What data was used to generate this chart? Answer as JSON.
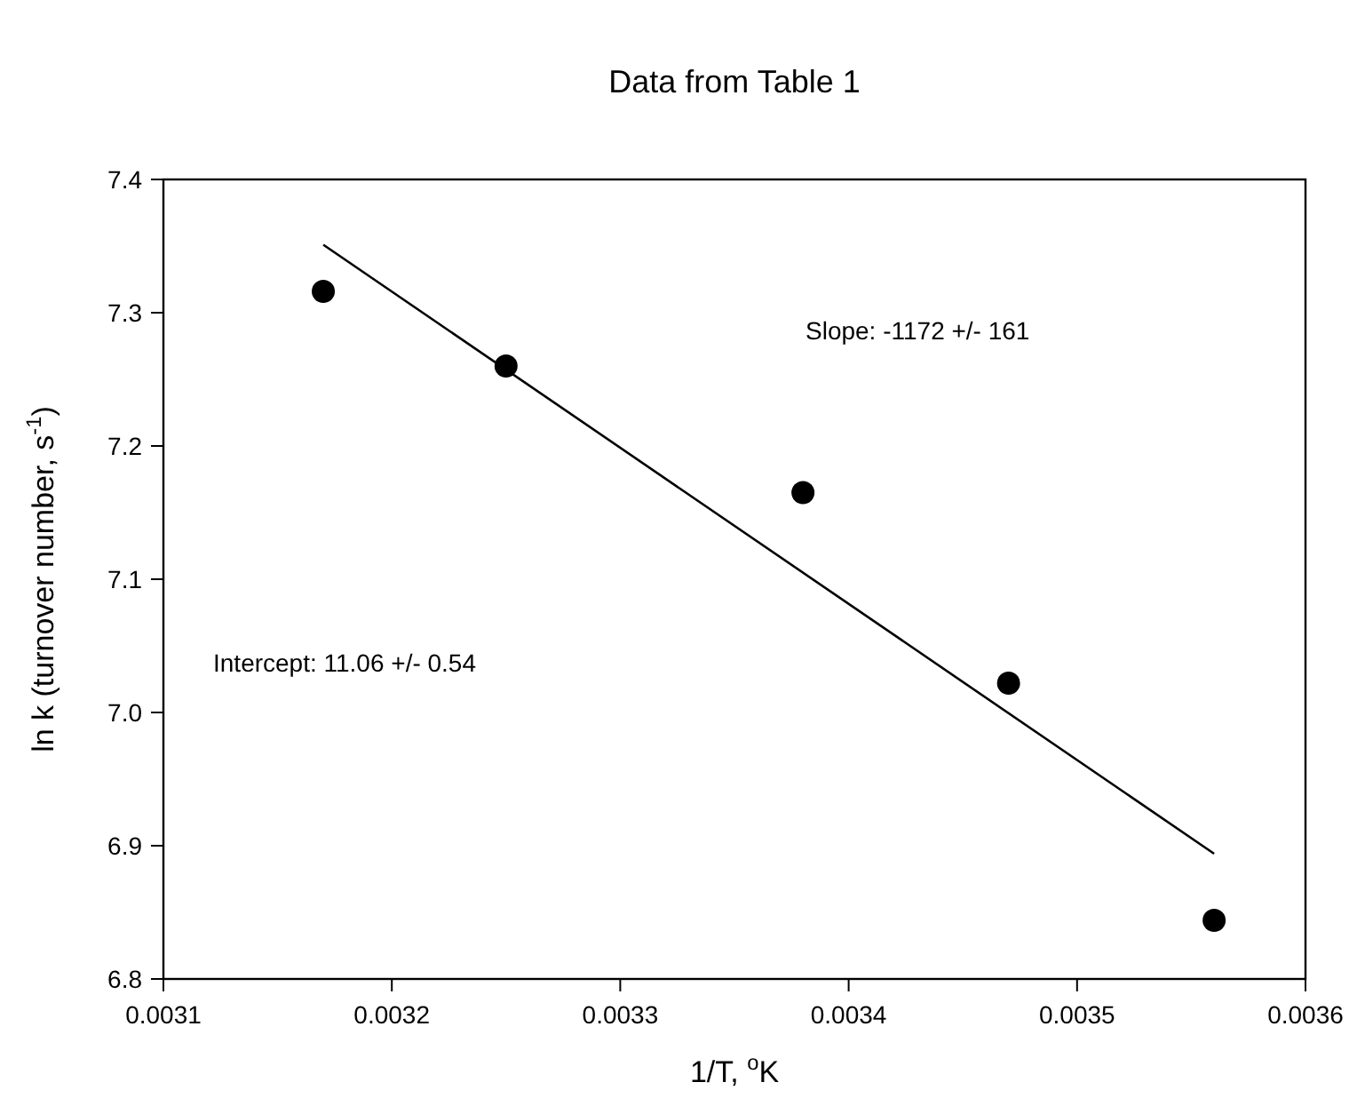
{
  "chart_data": {
    "type": "scatter",
    "title": "Data from Table 1",
    "xlabel": "1/T, $^{o}$K",
    "ylabel": "ln k (turnover number, s$^{-1}$)",
    "series": [
      {
        "color": "#000000",
        "marker": "circle",
        "x": [
          0.00317,
          0.00325,
          0.00338,
          0.00347,
          0.00356
        ],
        "values": [
          7.316,
          7.26,
          7.165,
          7.022,
          6.844
        ]
      },
      {
        "type": "line",
        "color": "#000000",
        "line_style": "solid",
        "x": [
          0.00317,
          0.00356
        ],
        "values": [
          7.351,
          6.894
        ]
      }
    ],
    "xlim": [
      0.0031,
      0.0036
    ],
    "xticks": [
      0.0031,
      0.0032,
      0.0033,
      0.0034,
      0.0035,
      0.0036
    ],
    "ylim": [
      6.8,
      7.4
    ],
    "yticks": [
      6.8,
      6.9,
      {
        "value": 7.0,
        "label": "7.0"
      },
      7.1,
      7.2,
      7.3,
      7.4
    ],
    "annotations": [
      "Slope: -1172 +/- 161",
      "Intercept: 11.06 +/- 0.54"
    ]
  }
}
